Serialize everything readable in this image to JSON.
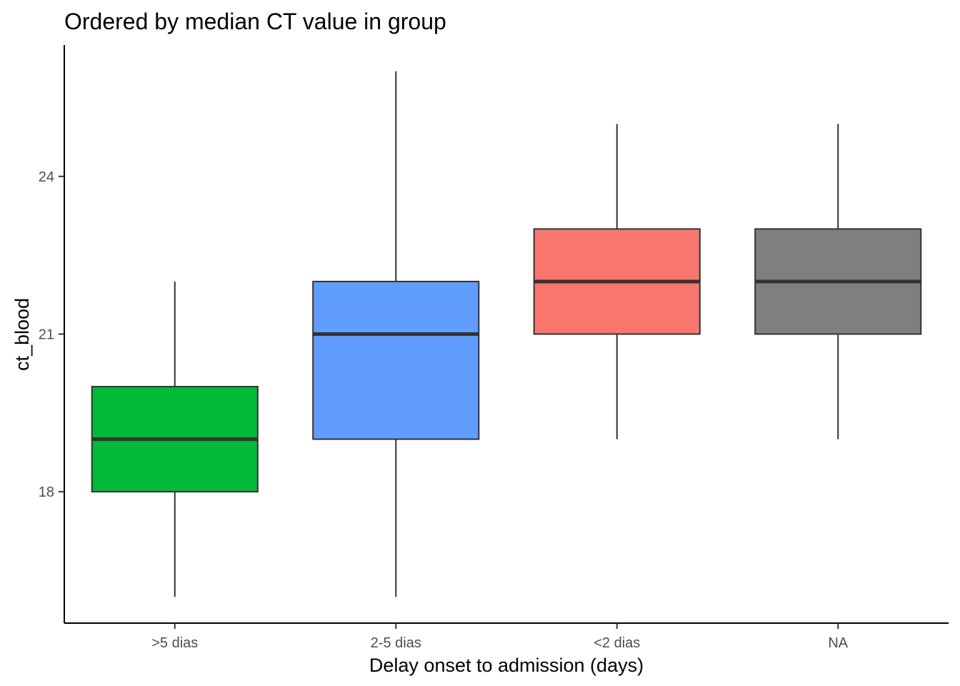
{
  "chart_data": {
    "type": "box",
    "title": "Ordered by median CT value in group",
    "xlabel": "Delay onset to admission (days)",
    "ylabel": "ct_blood",
    "ylim": [
      15.5,
      26.5
    ],
    "yticks": [
      18,
      21,
      24
    ],
    "grid": false,
    "legend": "none",
    "categories": [
      ">5 dias",
      "2-5 dias",
      "<2 dias",
      "NA"
    ],
    "boxes": [
      {
        "category": ">5 dias",
        "whisker_low": 16,
        "q1": 18,
        "median": 19,
        "q3": 20,
        "whisker_high": 22,
        "color": "#00BA38"
      },
      {
        "category": "2-5 dias",
        "whisker_low": 16,
        "q1": 19,
        "median": 21,
        "q3": 22,
        "whisker_high": 26,
        "color": "#619CFF"
      },
      {
        "category": "<2 dias",
        "whisker_low": 19,
        "q1": 21,
        "median": 22,
        "q3": 23,
        "whisker_high": 25,
        "color": "#F8766D"
      },
      {
        "category": "NA",
        "whisker_low": 19,
        "q1": 21,
        "median": 22,
        "q3": 23,
        "whisker_high": 25,
        "color": "#7F7F7F"
      }
    ]
  }
}
